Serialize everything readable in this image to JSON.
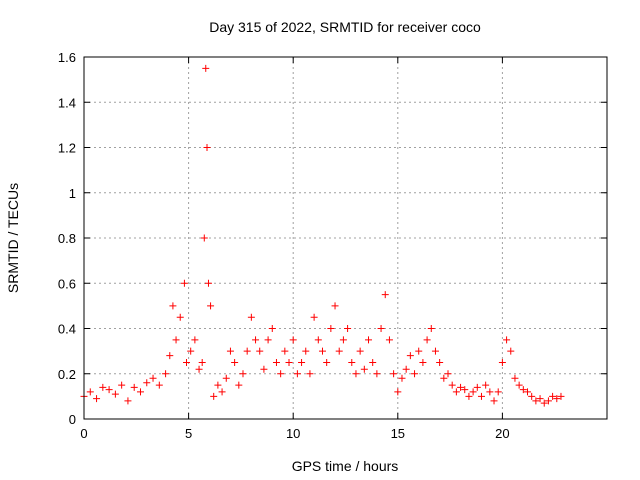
{
  "chart_data": {
    "type": "scatter",
    "title": "Day 315 of 2022, SRMTID for receiver coco",
    "xlabel": "GPS time / hours",
    "ylabel": "SRMTID / TECUs",
    "xlim": [
      0,
      25
    ],
    "ylim": [
      0,
      1.6
    ],
    "xticks": [
      0,
      5,
      10,
      15,
      20
    ],
    "xtick_labels": [
      "0",
      "5",
      "10",
      "15",
      "20"
    ],
    "yticks": [
      0,
      0.2,
      0.4,
      0.6,
      0.8,
      1,
      1.2,
      1.4,
      1.6
    ],
    "ytick_labels": [
      "0",
      "0.2",
      "0.4",
      "0.6",
      "0.8",
      "1",
      "1.2",
      "1.4",
      "1.6"
    ],
    "grid": true,
    "marker": "+",
    "series_color": "#ff0000",
    "series": [
      {
        "name": "SRMTID",
        "x": [
          0.0,
          0.3,
          0.6,
          0.9,
          1.2,
          1.5,
          1.8,
          2.1,
          2.4,
          2.7,
          3.0,
          3.3,
          3.6,
          3.9,
          4.1,
          4.25,
          4.4,
          4.6,
          4.8,
          4.9,
          5.1,
          5.3,
          5.5,
          5.65,
          5.75,
          5.82,
          5.88,
          5.95,
          6.05,
          6.2,
          6.4,
          6.6,
          6.8,
          7.0,
          7.2,
          7.4,
          7.6,
          7.8,
          8.0,
          8.2,
          8.4,
          8.6,
          8.8,
          9.0,
          9.2,
          9.4,
          9.6,
          9.8,
          10.0,
          10.2,
          10.4,
          10.6,
          10.8,
          11.0,
          11.2,
          11.4,
          11.6,
          11.8,
          12.0,
          12.2,
          12.4,
          12.6,
          12.8,
          13.0,
          13.2,
          13.4,
          13.6,
          13.8,
          14.0,
          14.2,
          14.4,
          14.6,
          14.8,
          15.0,
          15.2,
          15.4,
          15.6,
          15.8,
          16.0,
          16.2,
          16.4,
          16.6,
          16.8,
          17.0,
          17.2,
          17.4,
          17.6,
          17.8,
          18.0,
          18.2,
          18.4,
          18.6,
          18.8,
          19.0,
          19.2,
          19.4,
          19.6,
          19.8,
          20.0,
          20.2,
          20.4,
          20.6,
          20.8,
          21.0,
          21.2,
          21.4,
          21.6,
          21.8,
          22.0,
          22.2,
          22.4,
          22.6,
          22.8
        ],
        "y": [
          0.1,
          0.12,
          0.09,
          0.14,
          0.13,
          0.11,
          0.15,
          0.08,
          0.14,
          0.12,
          0.16,
          0.18,
          0.15,
          0.2,
          0.28,
          0.5,
          0.35,
          0.45,
          0.6,
          0.25,
          0.3,
          0.35,
          0.22,
          0.25,
          0.8,
          1.55,
          1.2,
          0.6,
          0.5,
          0.1,
          0.15,
          0.12,
          0.18,
          0.3,
          0.25,
          0.15,
          0.2,
          0.3,
          0.45,
          0.35,
          0.3,
          0.22,
          0.35,
          0.4,
          0.25,
          0.2,
          0.3,
          0.25,
          0.35,
          0.2,
          0.25,
          0.3,
          0.2,
          0.45,
          0.35,
          0.3,
          0.25,
          0.4,
          0.5,
          0.3,
          0.35,
          0.4,
          0.25,
          0.2,
          0.3,
          0.22,
          0.35,
          0.25,
          0.2,
          0.4,
          0.55,
          0.35,
          0.2,
          0.12,
          0.18,
          0.22,
          0.28,
          0.2,
          0.3,
          0.25,
          0.35,
          0.4,
          0.3,
          0.25,
          0.18,
          0.2,
          0.15,
          0.12,
          0.14,
          0.13,
          0.1,
          0.12,
          0.14,
          0.1,
          0.15,
          0.12,
          0.08,
          0.12,
          0.25,
          0.35,
          0.3,
          0.18,
          0.15,
          0.13,
          0.12,
          0.1,
          0.08,
          0.09,
          0.07,
          0.08,
          0.1,
          0.09,
          0.1
        ]
      }
    ]
  }
}
